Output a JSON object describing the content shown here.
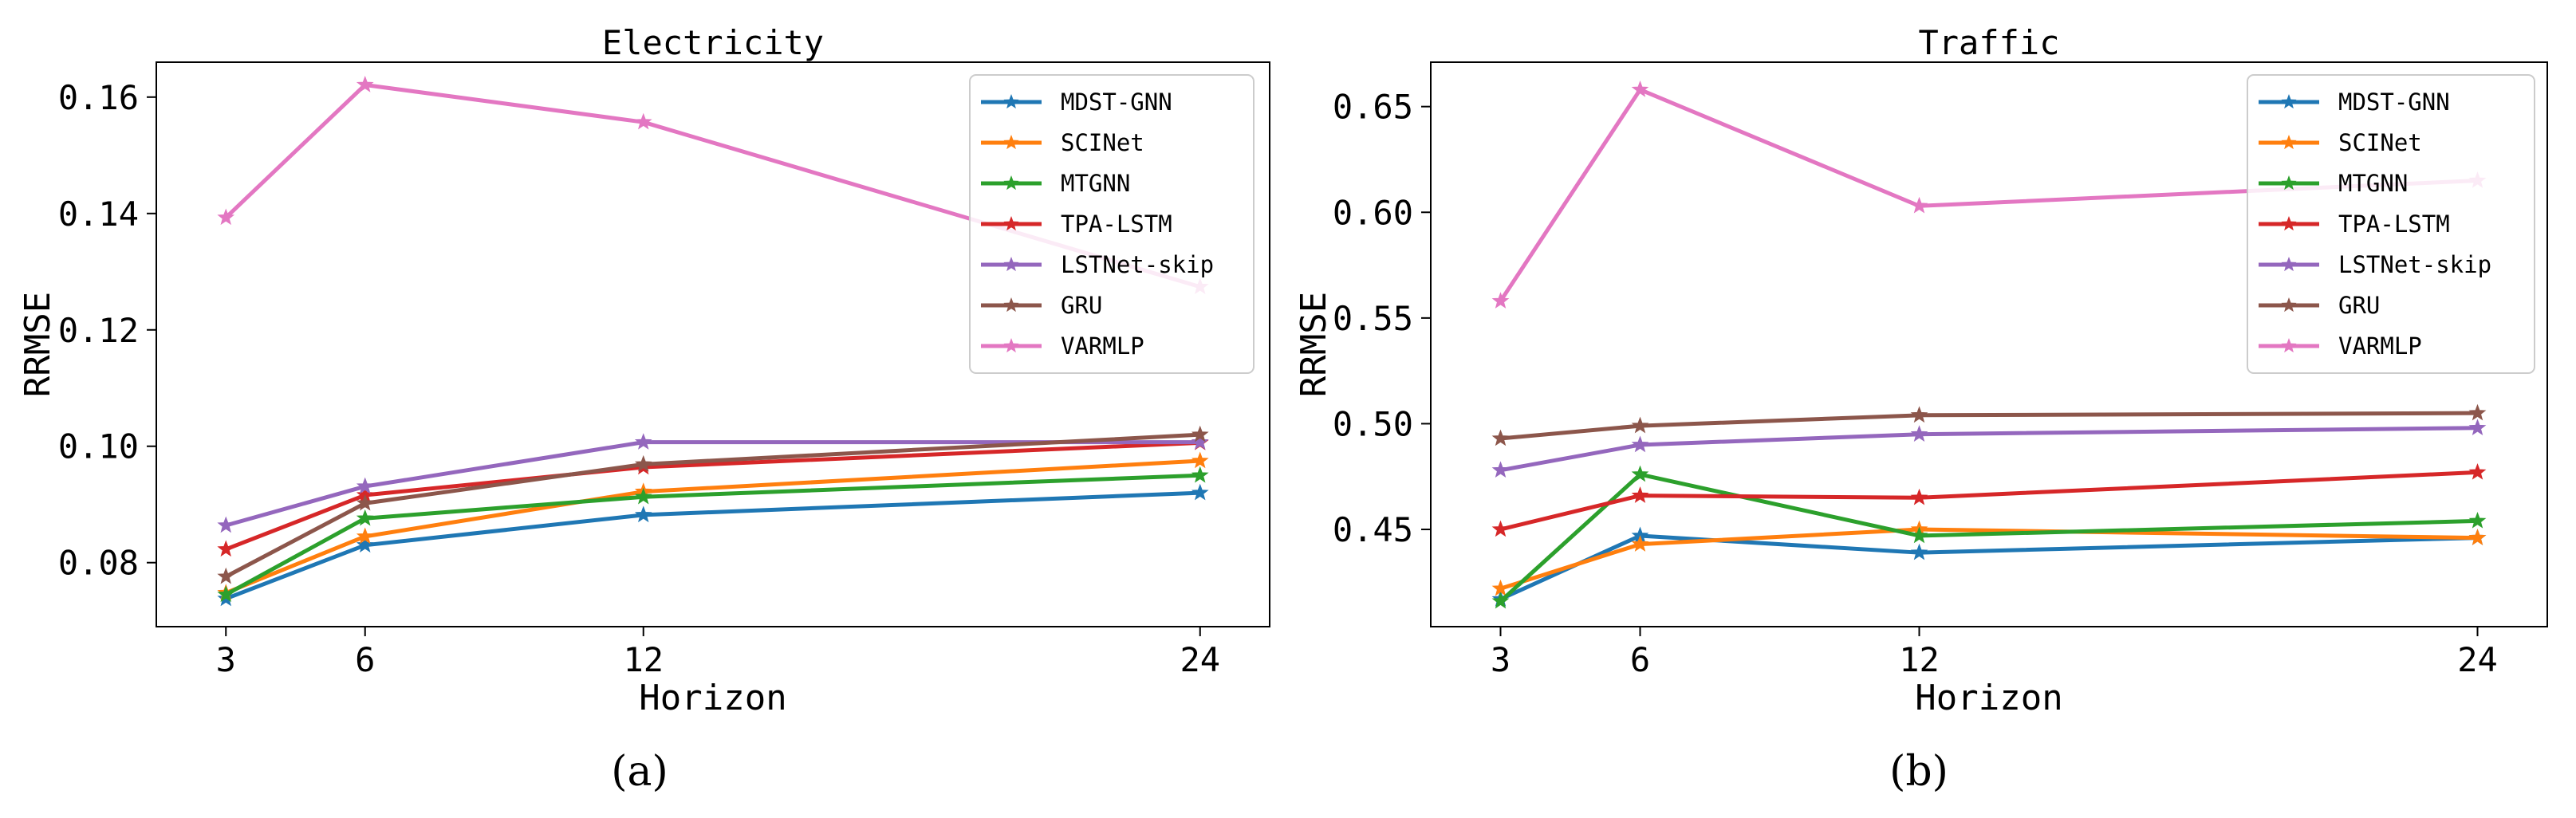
{
  "chart_data": [
    {
      "type": "line",
      "title": "Electricity",
      "xlabel": "Horizon",
      "ylabel": "RRMSE",
      "caption": "(a)",
      "x": [
        3,
        6,
        12,
        24
      ],
      "xlim": [
        1.5,
        25.5
      ],
      "ylim": [
        0.069,
        0.166
      ],
      "yticks": [
        0.08,
        0.1,
        0.12,
        0.14,
        0.16
      ],
      "ytick_labels": [
        "0.08",
        "0.10",
        "0.12",
        "0.14",
        "0.16"
      ],
      "xtick_labels": [
        "3",
        "6",
        "12",
        "24"
      ],
      "legend_position": "top-right",
      "grid": false,
      "series": [
        {
          "name": "MDST-GNN",
          "color": "#1f77b4",
          "values": [
            0.0738,
            0.083,
            0.0882,
            0.092
          ]
        },
        {
          "name": "SCINet",
          "color": "#ff7f0e",
          "values": [
            0.0748,
            0.0845,
            0.0922,
            0.0975
          ]
        },
        {
          "name": "MTGNN",
          "color": "#2ca02c",
          "values": [
            0.0745,
            0.0876,
            0.0913,
            0.095
          ]
        },
        {
          "name": "TPA-LSTM",
          "color": "#d62728",
          "values": [
            0.0823,
            0.0916,
            0.0964,
            0.1006
          ]
        },
        {
          "name": "LSTNet-skip",
          "color": "#9467bd",
          "values": [
            0.0864,
            0.0931,
            0.1007,
            0.1007
          ]
        },
        {
          "name": "GRU",
          "color": "#8c564b",
          "values": [
            0.0776,
            0.0902,
            0.0969,
            0.102
          ]
        },
        {
          "name": "VARMLP",
          "color": "#e377c2",
          "values": [
            0.1393,
            0.1621,
            0.1557,
            0.1274
          ]
        }
      ]
    },
    {
      "type": "line",
      "title": "Traffic",
      "xlabel": "Horizon",
      "ylabel": "RRMSE",
      "caption": "(b)",
      "x": [
        3,
        6,
        12,
        24
      ],
      "xlim": [
        1.5,
        25.5
      ],
      "ylim": [
        0.404,
        0.671
      ],
      "yticks": [
        0.45,
        0.5,
        0.55,
        0.6,
        0.65
      ],
      "ytick_labels": [
        "0.45",
        "0.50",
        "0.55",
        "0.60",
        "0.65"
      ],
      "xtick_labels": [
        "3",
        "6",
        "12",
        "24"
      ],
      "legend_position": "top-right",
      "grid": false,
      "series": [
        {
          "name": "MDST-GNN",
          "color": "#1f77b4",
          "values": [
            0.417,
            0.447,
            0.439,
            0.446
          ]
        },
        {
          "name": "SCINet",
          "color": "#ff7f0e",
          "values": [
            0.422,
            0.443,
            0.45,
            0.446
          ]
        },
        {
          "name": "MTGNN",
          "color": "#2ca02c",
          "values": [
            0.416,
            0.476,
            0.447,
            0.454
          ]
        },
        {
          "name": "TPA-LSTM",
          "color": "#d62728",
          "values": [
            0.45,
            0.466,
            0.465,
            0.477
          ]
        },
        {
          "name": "LSTNet-skip",
          "color": "#9467bd",
          "values": [
            0.478,
            0.49,
            0.495,
            0.498
          ]
        },
        {
          "name": "GRU",
          "color": "#8c564b",
          "values": [
            0.493,
            0.499,
            0.504,
            0.505
          ]
        },
        {
          "name": "VARMLP",
          "color": "#e377c2",
          "values": [
            0.558,
            0.658,
            0.603,
            0.615
          ]
        }
      ]
    }
  ]
}
